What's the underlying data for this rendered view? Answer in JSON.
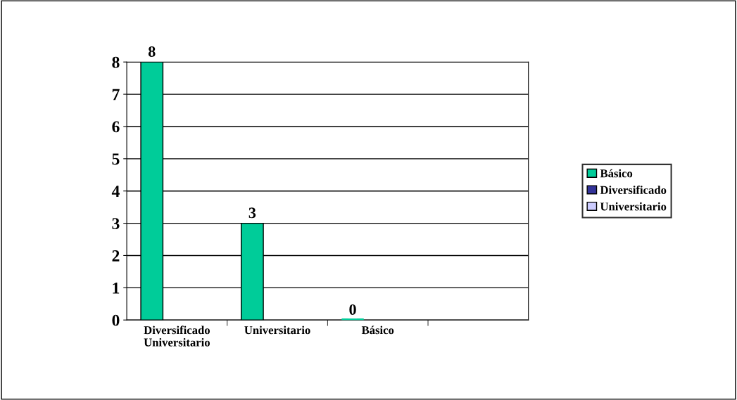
{
  "chart_data": {
    "type": "bar",
    "categories": [
      "Diversificado Universitario",
      "Universitario",
      "Básico",
      null
    ],
    "series": [
      {
        "name": "Básico",
        "color": "#00cc99",
        "values": [
          8,
          3,
          0,
          null
        ]
      },
      {
        "name": "Diversificado",
        "color": "#333399",
        "values": [
          null,
          null,
          null,
          null
        ]
      },
      {
        "name": "Universitario",
        "color": "#ccccff",
        "values": [
          null,
          null,
          null,
          null
        ]
      }
    ],
    "ylim": [
      0,
      8
    ],
    "yticks": [
      0,
      1,
      2,
      3,
      4,
      5,
      6,
      7,
      8
    ],
    "grid": "y",
    "legend": "right",
    "data_labels": true
  }
}
